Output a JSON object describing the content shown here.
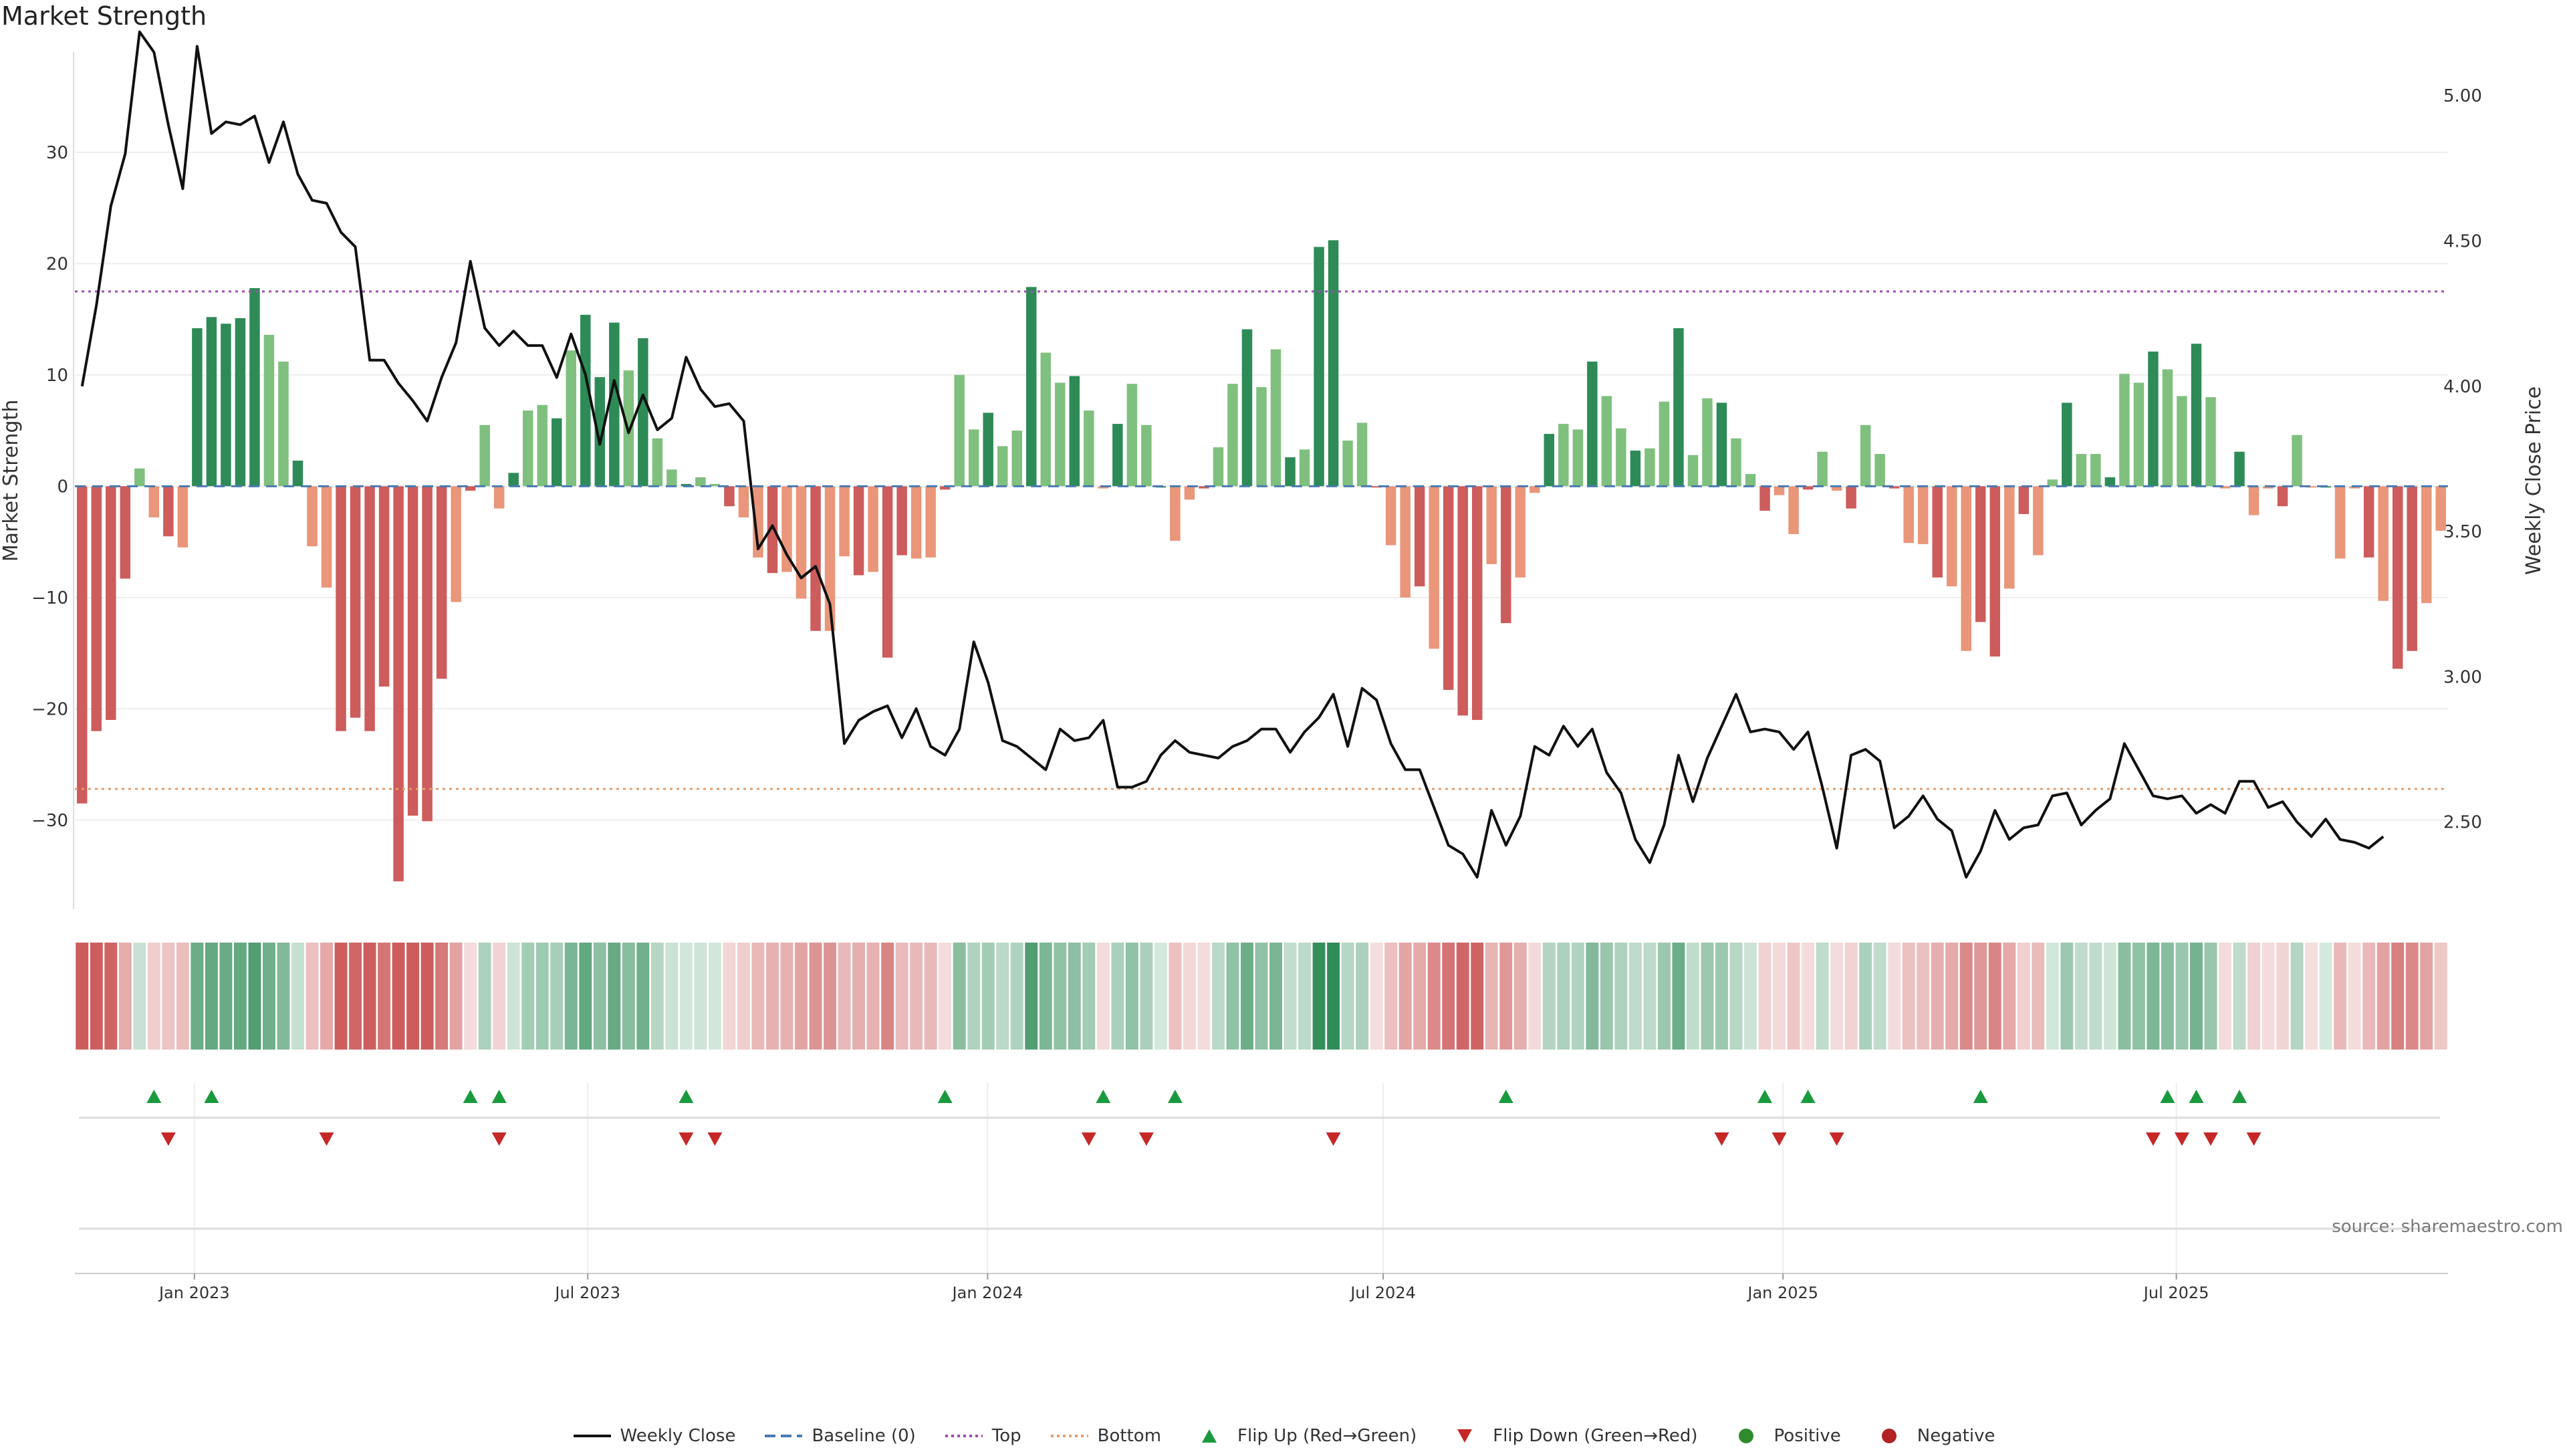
{
  "title": "Market Strength",
  "source": "source: sharemaestro.com",
  "chart_data": {
    "type": "bar",
    "y_left_label": "Market Strength",
    "y_right_label": "Weekly Close Price",
    "y_left_range": [
      -38,
      39
    ],
    "y_right_range": [
      2.2,
      5.15
    ],
    "y_left_ticks": [
      "30",
      "20",
      "10",
      "0",
      "−10",
      "−20",
      "−30"
    ],
    "y_right_ticks": [
      "5.00",
      "4.50",
      "4.00",
      "3.50",
      "3.00",
      "2.50"
    ],
    "top_line": 17.5,
    "bottom_line": -27.2,
    "x_start": "2022-11-07",
    "x_end": "2025-11-03",
    "x_ticks": [
      {
        "label": "Jan 2023",
        "date": "2023-01-01"
      },
      {
        "label": "Jul 2023",
        "date": "2023-07-01"
      },
      {
        "label": "Jan 2024",
        "date": "2024-01-01"
      },
      {
        "label": "Jul 2024",
        "date": "2024-07-01"
      },
      {
        "label": "Jan 2025",
        "date": "2025-01-01"
      },
      {
        "label": "Jul 2025",
        "date": "2025-07-01"
      }
    ],
    "colors": {
      "strong_pos": "#2e8b57",
      "weak_pos": "#7fc07f",
      "strong_neg": "#cd5c5c",
      "weak_neg": "#e9967a",
      "price": "#111111",
      "baseline": "#4a7ab0",
      "top": "#9c4fb0",
      "bottom": "#e0a070",
      "flip_up": "#1a9a3e",
      "flip_down": "#c62828",
      "positive": "#2e8b2e",
      "negative": "#b22222"
    },
    "strength": [
      -28.5,
      -22,
      -21,
      -8.3,
      1.6,
      -2.8,
      -4.5,
      -5.5,
      14.2,
      15.2,
      14.6,
      15.1,
      17.8,
      13.6,
      11.2,
      2.3,
      -5.4,
      -9.1,
      -22,
      -20.8,
      -22,
      -18,
      -35.5,
      -29.6,
      -30.1,
      -17.3,
      -10.4,
      -0.4,
      5.5,
      -2,
      1.2,
      6.8,
      7.3,
      6.1,
      12.2,
      15.4,
      9.8,
      14.7,
      10.4,
      13.3,
      4.3,
      1.5,
      0.2,
      0.8,
      0.2,
      -1.8,
      -2.8,
      -6.4,
      -7.8,
      -7.7,
      -10.1,
      -13,
      -13,
      -6.3,
      -8,
      -7.7,
      -15.4,
      -6.2,
      -6.5,
      -6.4,
      -0.3,
      10,
      5.1,
      6.6,
      3.6,
      5,
      17.9,
      12,
      9.3,
      9.9,
      6.8,
      -0.2,
      5.6,
      9.2,
      5.5,
      0,
      -4.9,
      -1.2,
      -0.2,
      3.5,
      9.2,
      14.1,
      8.9,
      12.3,
      2.6,
      3.3,
      21.5,
      22.1,
      4.1,
      5.7,
      -0.1,
      -5.3,
      -10,
      -9,
      -14.6,
      -18.3,
      -20.6,
      -21,
      -7,
      -12.3,
      -8.2,
      -0.6,
      4.7,
      5.6,
      5.1,
      11.2,
      8.1,
      5.2,
      3.2,
      3.4,
      7.6,
      14.2,
      2.8,
      7.9,
      7.5,
      4.3,
      1.1,
      -2.2,
      -0.8,
      -4.3,
      -0.3,
      3.1,
      -0.4,
      -2,
      5.5,
      2.9,
      -0.2,
      -5.1,
      -5.2,
      -8.2,
      -9,
      -14.8,
      -12.2,
      -15.3,
      -9.2,
      -2.5,
      -6.2,
      0.6,
      7.5,
      2.9,
      2.9,
      0.8,
      10.1,
      9.3,
      12.1,
      10.5,
      8.1,
      12.8,
      8,
      -0.2,
      3.1,
      -2.6,
      -0.2,
      -1.8,
      4.6,
      -0.1,
      0,
      -6.5,
      -0.2,
      -6.4,
      -10.3,
      -16.4,
      -14.8,
      -10.5,
      -4
    ],
    "price": [
      4.0,
      4.28,
      4.62,
      4.8,
      5.22,
      5.15,
      4.9,
      4.68,
      5.17,
      4.87,
      4.91,
      4.9,
      4.93,
      4.77,
      4.91,
      4.73,
      4.64,
      4.63,
      4.53,
      4.48,
      4.09,
      4.09,
      4.01,
      3.95,
      3.88,
      4.03,
      4.15,
      4.43,
      4.2,
      4.14,
      4.19,
      4.14,
      4.14,
      4.03,
      4.18,
      4.04,
      3.8,
      4.02,
      3.84,
      3.97,
      3.85,
      3.89,
      4.1,
      3.99,
      3.93,
      3.94,
      3.88,
      3.44,
      3.52,
      3.42,
      3.34,
      3.38,
      3.25,
      2.77,
      2.85,
      2.88,
      2.9,
      2.79,
      2.89,
      2.76,
      2.73,
      2.82,
      3.12,
      2.98,
      2.78,
      2.76,
      2.72,
      2.68,
      2.82,
      2.78,
      2.79,
      2.85,
      2.62,
      2.62,
      2.64,
      2.73,
      2.78,
      2.74,
      2.73,
      2.72,
      2.76,
      2.78,
      2.82,
      2.82,
      2.74,
      2.81,
      2.86,
      2.94,
      2.76,
      2.96,
      2.92,
      2.77,
      2.68,
      2.68,
      2.55,
      2.42,
      2.39,
      2.31,
      2.54,
      2.42,
      2.52,
      2.76,
      2.73,
      2.83,
      2.76,
      2.82,
      2.67,
      2.6,
      2.44,
      2.36,
      2.49,
      2.73,
      2.57,
      2.72,
      2.83,
      2.94,
      2.81,
      2.82,
      2.81,
      2.75,
      2.81,
      2.62,
      2.41,
      2.73,
      2.75,
      2.71,
      2.48,
      2.52,
      2.59,
      2.51,
      2.47,
      2.31,
      2.4,
      2.54,
      2.44,
      2.48,
      2.49,
      2.59,
      2.6,
      2.49,
      2.54,
      2.58,
      2.77,
      2.68,
      2.59,
      2.58,
      2.59,
      2.53,
      2.56,
      2.53,
      2.64,
      2.64,
      2.55,
      2.57,
      2.5,
      2.45,
      2.51,
      2.44,
      2.43,
      2.41,
      2.45
    ]
  },
  "heat_strip": {
    "strong_pos": "#2e8b57",
    "strong_neg": "#cd5c5c"
  },
  "flips": {
    "up": [
      5,
      9,
      27,
      29,
      42,
      60,
      71,
      76,
      99,
      117,
      120,
      132,
      145,
      147,
      150
    ],
    "down": [
      6,
      17,
      29,
      42,
      44,
      70,
      74,
      87,
      114,
      118,
      122,
      144,
      146,
      148,
      151
    ]
  },
  "legend": [
    {
      "key": "weekly_close",
      "label": "Weekly Close",
      "kind": "line"
    },
    {
      "key": "baseline",
      "label": "Baseline (0)",
      "kind": "dash"
    },
    {
      "key": "top",
      "label": "Top",
      "kind": "dot"
    },
    {
      "key": "bottom",
      "label": "Bottom",
      "kind": "dot"
    },
    {
      "key": "flip_up",
      "label": "Flip Up (Red→Green)",
      "kind": "tri-up"
    },
    {
      "key": "flip_down",
      "label": "Flip Down (Green→Red)",
      "kind": "tri-down"
    },
    {
      "key": "positive",
      "label": "Positive",
      "kind": "circle"
    },
    {
      "key": "negative",
      "label": "Negative",
      "kind": "circle"
    }
  ]
}
